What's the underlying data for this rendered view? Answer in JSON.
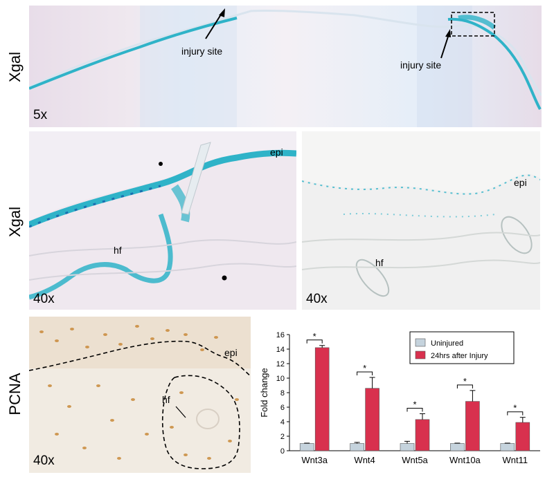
{
  "rows": {
    "row1_label": "Xgal",
    "row2_label": "Xgal",
    "row3_label": "PCNA"
  },
  "panel_top": {
    "magnification": "5x",
    "annotation_left": "injury site",
    "annotation_right": "injury site"
  },
  "panel_mid_left": {
    "magnification": "40x",
    "label_epi": "epi",
    "label_hf": "hf"
  },
  "panel_mid_right": {
    "magnification": "40x",
    "label_epi": "epi",
    "label_hf": "hf"
  },
  "panel_bottom_left": {
    "magnification": "40x",
    "label_epi": "epi",
    "label_hf": "hf"
  },
  "chart_data": {
    "type": "bar",
    "categories": [
      "Wnt3a",
      "Wnt4",
      "Wnt5a",
      "Wnt10a",
      "Wnt11"
    ],
    "series": [
      {
        "name": "Uninjured",
        "values": [
          1.0,
          1.0,
          1.0,
          1.0,
          1.0
        ],
        "errors": [
          0.05,
          0.15,
          0.3,
          0.05,
          0.05
        ],
        "color": "#c5d3dd"
      },
      {
        "name": "24hrs after Injury",
        "values": [
          14.2,
          8.6,
          4.3,
          6.8,
          3.9
        ],
        "errors": [
          0.3,
          1.5,
          0.8,
          1.5,
          0.7
        ],
        "color": "#d8314e"
      }
    ],
    "significance": [
      "*",
      "*",
      "*",
      "*",
      "*"
    ],
    "ylabel": "Fold change",
    "ylim": [
      0,
      16
    ],
    "yticks": [
      0,
      2,
      4,
      6,
      8,
      10,
      12,
      14,
      16
    ],
    "legend_position": "top-right",
    "grid": false
  },
  "colors": {
    "xgal_blue": "#2fb3c8",
    "pcna_brown": "#c98a3a",
    "bar_uninjured": "#c5d3dd",
    "bar_injured": "#d8314e"
  }
}
